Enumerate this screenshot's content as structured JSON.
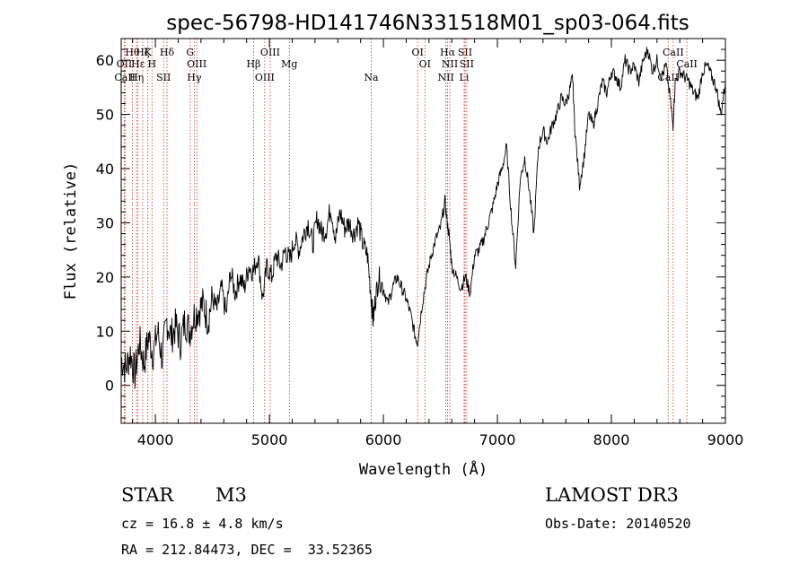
{
  "chart_data": {
    "type": "line",
    "title": "spec-56798-HD141746N331518M01_sp03-064.fits",
    "xlabel": "Wavelength (Å)",
    "ylabel": "Flux (relative)",
    "xlim": [
      3700,
      9000
    ],
    "ylim": [
      -7,
      64
    ],
    "xticks": [
      4000,
      5000,
      6000,
      7000,
      8000,
      9000
    ],
    "yticks": [
      0,
      10,
      20,
      30,
      40,
      50,
      60
    ],
    "series": [
      {
        "name": "flux",
        "x": [
          3700,
          3740,
          3780,
          3820,
          3860,
          3900,
          3940,
          3980,
          4020,
          4060,
          4100,
          4140,
          4180,
          4220,
          4260,
          4300,
          4340,
          4380,
          4420,
          4460,
          4500,
          4540,
          4580,
          4620,
          4660,
          4700,
          4740,
          4780,
          4820,
          4860,
          4900,
          4940,
          4980,
          5020,
          5060,
          5100,
          5140,
          5180,
          5220,
          5260,
          5300,
          5340,
          5380,
          5420,
          5460,
          5500,
          5540,
          5580,
          5620,
          5660,
          5700,
          5740,
          5780,
          5820,
          5860,
          5890,
          5910,
          5930,
          5960,
          6000,
          6040,
          6080,
          6120,
          6160,
          6200,
          6240,
          6280,
          6300,
          6340,
          6380,
          6420,
          6460,
          6500,
          6540,
          6560,
          6580,
          6600,
          6640,
          6680,
          6720,
          6760,
          6800,
          6840,
          6880,
          6920,
          6960,
          7000,
          7040,
          7080,
          7120,
          7160,
          7200,
          7240,
          7280,
          7320,
          7360,
          7400,
          7440,
          7480,
          7520,
          7560,
          7600,
          7640,
          7660,
          7680,
          7720,
          7760,
          7800,
          7840,
          7880,
          7920,
          7960,
          8000,
          8040,
          8080,
          8120,
          8160,
          8200,
          8240,
          8280,
          8320,
          8360,
          8400,
          8440,
          8480,
          8520,
          8540,
          8560,
          8600,
          8640,
          8680,
          8720,
          8760,
          8800,
          8840,
          8880,
          8920,
          8960,
          9000
        ],
        "y": [
          5,
          3,
          6,
          2,
          8,
          4,
          9,
          6,
          10,
          5,
          12,
          9,
          11,
          8,
          12,
          10,
          13,
          14,
          15,
          12,
          16,
          14,
          18,
          13,
          21,
          17,
          20,
          18,
          22,
          21,
          24,
          16,
          22,
          20,
          24,
          22,
          25,
          23,
          27,
          25,
          28,
          30,
          26,
          31,
          28,
          29,
          33,
          27,
          32,
          29,
          30,
          28,
          30,
          26,
          24,
          17,
          12,
          16,
          20,
          18,
          15,
          18,
          20,
          18,
          16,
          13,
          9,
          8,
          15,
          20,
          24,
          27,
          29,
          34,
          30,
          27,
          22,
          20,
          18,
          20,
          17,
          24,
          25,
          27,
          30,
          33,
          37,
          40,
          44,
          32,
          22,
          38,
          42,
          36,
          28,
          44,
          47,
          45,
          48,
          50,
          53,
          52,
          55,
          57,
          47,
          37,
          42,
          50,
          48,
          52,
          56,
          54,
          58,
          57,
          55,
          60,
          58,
          59,
          56,
          60,
          62,
          58,
          60,
          57,
          59,
          52,
          48,
          56,
          58,
          57,
          56,
          54,
          53,
          58,
          59,
          57,
          55,
          50,
          56
        ]
      }
    ],
    "lines": [
      {
        "label": "Hθ",
        "x": 3798
      },
      {
        "label": "OII",
        "x": 3727
      },
      {
        "label": "CaII",
        "x": 3733
      },
      {
        "label": "Hζ",
        "x": 3889
      },
      {
        "label": "Hε",
        "x": 3848
      },
      {
        "label": "Hη",
        "x": 3835
      },
      {
        "label": "K",
        "x": 3934
      },
      {
        "label": "H",
        "x": 3970
      },
      {
        "label": "SII",
        "x": 4072
      },
      {
        "label": "Hδ",
        "x": 4102
      },
      {
        "label": "OIII",
        "x": 4363
      },
      {
        "label": "Hγ",
        "x": 4341
      },
      {
        "label": "G",
        "x": 4305
      },
      {
        "label": "Hβ",
        "x": 4861
      },
      {
        "label": "OIII",
        "x": 4959
      },
      {
        "label": "OIII",
        "x": 5007
      },
      {
        "label": "Mg",
        "x": 5175
      },
      {
        "label": "Na",
        "x": 5893
      },
      {
        "label": "OI",
        "x": 6300
      },
      {
        "label": "OI",
        "x": 6364
      },
      {
        "label": "NII",
        "x": 6548
      },
      {
        "label": "Hα",
        "x": 6563
      },
      {
        "label": "NII",
        "x": 6583
      },
      {
        "label": "Li",
        "x": 6708
      },
      {
        "label": "SII",
        "x": 6716
      },
      {
        "label": "SII",
        "x": 6731
      },
      {
        "label": "CaII",
        "x": 8498
      },
      {
        "label": "CaII",
        "x": 8542
      },
      {
        "label": "CaII",
        "x": 8662
      }
    ]
  },
  "info": {
    "class_label": "STAR",
    "subclass": "M3",
    "survey": "LAMOST DR3",
    "redshift_label": "cz = 16.8 ± 4.8 km/s",
    "obs_date": "Obs-Date: 20140520",
    "coords": "RA = 212.84473, DEC =  33.52365"
  }
}
